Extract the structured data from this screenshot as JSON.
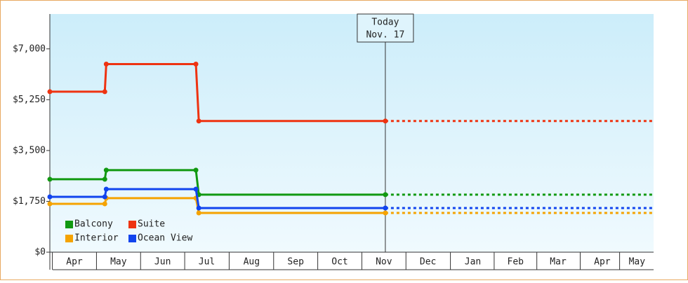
{
  "chart_data": {
    "type": "step-line",
    "x": [
      -2,
      36,
      37,
      99,
      101,
      230,
      415
    ],
    "xlim": [
      -2,
      415.5
    ],
    "xticks": [
      {
        "value": 15,
        "label": "Apr"
      },
      {
        "value": 45.5,
        "label": "May"
      },
      {
        "value": 76,
        "label": "Jun"
      },
      {
        "value": 106.5,
        "label": "Jul"
      },
      {
        "value": 137.5,
        "label": "Aug"
      },
      {
        "value": 168,
        "label": "Sep"
      },
      {
        "value": 198.5,
        "label": "Oct"
      },
      {
        "value": 229,
        "label": "Nov"
      },
      {
        "value": 259.5,
        "label": "Dec"
      },
      {
        "value": 290.5,
        "label": "Jan"
      },
      {
        "value": 320,
        "label": "Feb"
      },
      {
        "value": 349.5,
        "label": "Mar"
      },
      {
        "value": 380,
        "label": "Apr"
      },
      {
        "value": 404,
        "label": "May"
      }
    ],
    "ylim": [
      0,
      8200
    ],
    "yticks": [
      {
        "value": 0,
        "label": "$0"
      },
      {
        "value": 1750,
        "label": "$1,750"
      },
      {
        "value": 3500,
        "label": "$3,500"
      },
      {
        "value": 5250,
        "label": "$5,250"
      },
      {
        "value": 7000,
        "label": "$7,000"
      }
    ],
    "grid": false,
    "legend": "lower left",
    "today": {
      "x": 230,
      "label": [
        "Today",
        "Nov. 17"
      ]
    },
    "series": [
      {
        "name": "Balcony",
        "color": "#119911",
        "values": [
          2510,
          2510,
          2825,
          2825,
          1980,
          1980,
          1980
        ]
      },
      {
        "name": "Suite",
        "color": "#ee3311",
        "values": [
          5525,
          5525,
          6475,
          6475,
          4515,
          4515,
          4515
        ]
      },
      {
        "name": "Interior",
        "color": "#f5a300",
        "values": [
          1665,
          1665,
          1860,
          1860,
          1350,
          1350,
          1350
        ]
      },
      {
        "name": "Ocean View",
        "color": "#1144ee",
        "values": [
          1905,
          1905,
          2170,
          2170,
          1520,
          1520,
          1520
        ]
      }
    ]
  }
}
